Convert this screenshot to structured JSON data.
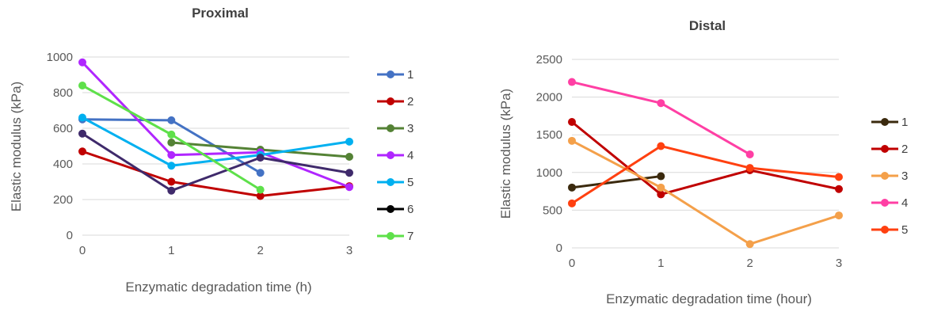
{
  "chart_data": [
    {
      "type": "line",
      "title": "Proximal",
      "xlabel": "Enzymatic degradation time (h)",
      "ylabel": "Elastic modulus (kPa)",
      "x": [
        0,
        1,
        2,
        3
      ],
      "x_ticks": [
        "0",
        "1",
        "2",
        "3"
      ],
      "y_ticks": [
        "0",
        "200",
        "400",
        "600",
        "800",
        "1000"
      ],
      "ylim": [
        0,
        1000
      ],
      "grid": true,
      "legend_position": "right",
      "series": [
        {
          "name": "1",
          "color": "#4472c4",
          "values": [
            650,
            645,
            350,
            null
          ]
        },
        {
          "name": "2",
          "color": "#c00000",
          "values": [
            470,
            300,
            220,
            275
          ]
        },
        {
          "name": "3",
          "color": "#548235",
          "values": [
            null,
            520,
            480,
            440
          ]
        },
        {
          "name": "4",
          "color": "#b026ff",
          "values": [
            970,
            450,
            465,
            270
          ]
        },
        {
          "name": "5",
          "color": "#00b0f0",
          "values": [
            660,
            390,
            450,
            525
          ]
        },
        {
          "name": "6",
          "color": "#3f2a6b",
          "legend_color": "#000000",
          "values": [
            570,
            250,
            435,
            350
          ]
        },
        {
          "name": "7",
          "color": "#5ee04a",
          "values": [
            840,
            565,
            255,
            null
          ]
        }
      ]
    },
    {
      "type": "line",
      "title": "Distal",
      "xlabel": "Enzymatic degradation time (hour)",
      "ylabel": "Elastic modulus (kPa)",
      "x": [
        0,
        1,
        2,
        3
      ],
      "x_ticks": [
        "0",
        "1",
        "2",
        "3"
      ],
      "y_ticks": [
        "0",
        "500",
        "1000",
        "1500",
        "2000",
        "2500"
      ],
      "ylim": [
        0,
        2500
      ],
      "grid": true,
      "legend_position": "right",
      "series": [
        {
          "name": "1",
          "color": "#3b2a0e",
          "values": [
            800,
            950,
            null,
            null
          ]
        },
        {
          "name": "2",
          "color": "#c00000",
          "values": [
            1670,
            710,
            1030,
            780
          ]
        },
        {
          "name": "3",
          "color": "#f4a04a",
          "values": [
            1420,
            800,
            50,
            430
          ]
        },
        {
          "name": "4",
          "color": "#ff3fa4",
          "values": [
            2200,
            1920,
            1240,
            null
          ]
        },
        {
          "name": "5",
          "color": "#ff4010",
          "values": [
            590,
            1350,
            1060,
            940
          ]
        }
      ]
    }
  ]
}
